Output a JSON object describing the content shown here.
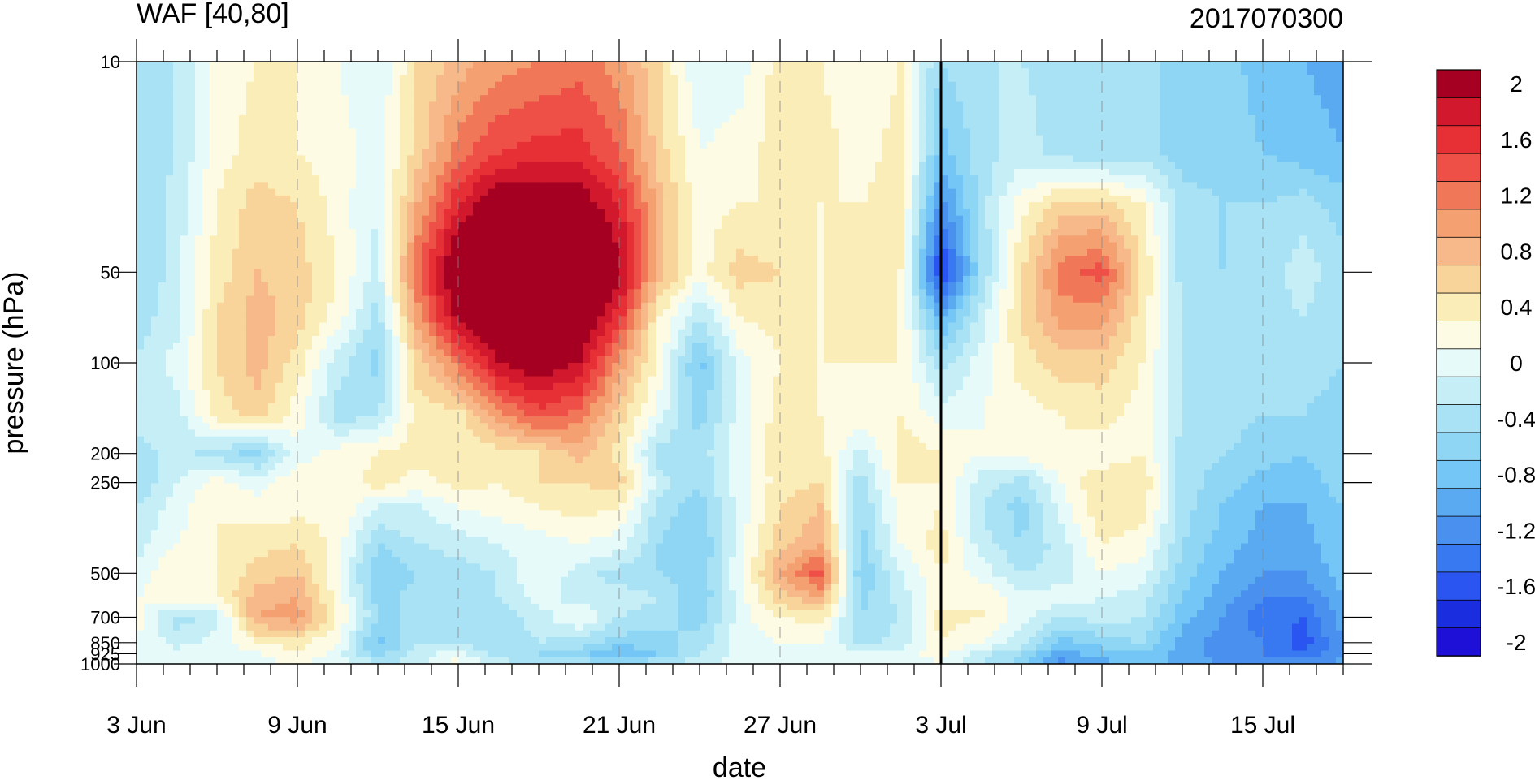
{
  "chart_data": {
    "type": "heatmap",
    "title": "WAF [40,80]",
    "subtitle": "2017070300",
    "xlabel": "date",
    "ylabel": "pressure (hPa)",
    "x_tick_labels": [
      "3 Jun",
      "9 Jun",
      "15 Jun",
      "21 Jun",
      "27 Jun",
      "3 Jul",
      "9 Jul",
      "15 Jul"
    ],
    "x_tick_days": [
      0,
      6,
      12,
      18,
      24,
      30,
      36,
      42
    ],
    "x_range_days": [
      0,
      45
    ],
    "y_scale": "log",
    "y_ticks": [
      10,
      50,
      100,
      200,
      250,
      500,
      700,
      850,
      925,
      1000
    ],
    "y_tick_labels": [
      "10",
      "50",
      "100",
      "200",
      "250",
      "500",
      "700",
      "850",
      "925",
      "1000"
    ],
    "y_range": [
      1000,
      10
    ],
    "reference_line_day": 30,
    "colorbar": {
      "levels": [
        -2.0,
        -1.8,
        -1.6,
        -1.4,
        -1.2,
        -1.0,
        -0.8,
        -0.6,
        -0.4,
        -0.2,
        0.0,
        0.2,
        0.4,
        0.6,
        0.8,
        1.0,
        1.2,
        1.4,
        1.6,
        1.8,
        2.0
      ],
      "labels": [
        "2",
        "1.6",
        "1.2",
        "0.8",
        "0.4",
        "0",
        "-0.4",
        "-0.8",
        "-1.2",
        "-1.6",
        "-2"
      ],
      "colors": [
        "#1f10d8",
        "#1a2ee0",
        "#2b55f0",
        "#3878f0",
        "#4a90ee",
        "#5aaaf2",
        "#73c6f5",
        "#8fd6f5",
        "#a8e2f4",
        "#c5eef7",
        "#e6fafa",
        "#fdfbe4",
        "#fbedb8",
        "#f8d39a",
        "#f7b98a",
        "#f4a070",
        "#f07858",
        "#ee5048",
        "#e63036",
        "#d1182c",
        "#a50021"
      ]
    },
    "grid_days": [
      0,
      1.5,
      3,
      4.5,
      6,
      7.5,
      9,
      10.5,
      12,
      13.5,
      15,
      16.5,
      18,
      19.5,
      21,
      22.5,
      24,
      25.5,
      27,
      28.5,
      30,
      31.5,
      33,
      34.5,
      36,
      37.5,
      39,
      40.5,
      42,
      43.5,
      45
    ],
    "grid_pressure": [
      10,
      20,
      30,
      50,
      70,
      100,
      150,
      200,
      250,
      300,
      400,
      500,
      600,
      700,
      850,
      925,
      1000
    ],
    "values": [
      [
        -0.4,
        -0.3,
        0.2,
        0.3,
        0.3,
        0.1,
        -0.1,
        0.5,
        0.8,
        1.0,
        1.1,
        1.2,
        1.0,
        0.5,
        -0.1,
        0.0,
        0.4,
        0.3,
        0.1,
        0.3,
        -0.5,
        -0.3,
        -0.3,
        -0.4,
        -0.5,
        -0.4,
        -0.6,
        -0.6,
        -0.8,
        -0.9,
        -1.0
      ],
      [
        -0.5,
        -0.3,
        0.2,
        0.4,
        0.3,
        0.2,
        0.0,
        0.6,
        1.2,
        1.5,
        1.6,
        1.6,
        1.3,
        0.6,
        0.1,
        0.2,
        0.4,
        0.4,
        0.2,
        0.4,
        -0.8,
        -0.4,
        -0.2,
        -0.4,
        -0.5,
        -0.4,
        -0.6,
        -0.6,
        -0.7,
        -0.8,
        -0.9
      ],
      [
        -0.5,
        -0.2,
        0.3,
        0.6,
        0.5,
        0.2,
        -0.1,
        0.9,
        1.7,
        2.2,
        2.2,
        2.1,
        1.7,
        0.8,
        0.2,
        0.3,
        0.3,
        0.3,
        0.3,
        0.4,
        -1.2,
        -0.4,
        0.2,
        0.6,
        0.6,
        0.3,
        -0.4,
        -0.5,
        -0.5,
        -0.4,
        -0.6
      ],
      [
        -0.5,
        -0.2,
        0.4,
        0.7,
        0.6,
        0.3,
        -0.2,
        1.3,
        2.3,
        2.5,
        2.5,
        2.4,
        2.0,
        0.8,
        0.2,
        0.6,
        0.5,
        0.3,
        0.4,
        0.3,
        -1.8,
        -0.5,
        0.5,
        1.2,
        1.4,
        0.5,
        -0.4,
        -0.5,
        -0.4,
        -0.2,
        -0.4
      ],
      [
        -0.4,
        -0.2,
        0.5,
        0.8,
        0.6,
        0.2,
        -0.4,
        1.0,
        2.0,
        2.4,
        2.5,
        2.3,
        1.6,
        0.3,
        -0.3,
        0.3,
        0.4,
        0.3,
        0.4,
        0.3,
        -1.0,
        -0.2,
        0.5,
        1.0,
        1.0,
        0.4,
        -0.3,
        -0.4,
        -0.4,
        -0.3,
        -0.5
      ],
      [
        -0.3,
        0.0,
        0.5,
        0.8,
        0.4,
        -0.2,
        -0.6,
        0.6,
        1.2,
        1.9,
        2.1,
        1.9,
        1.0,
        0.2,
        -0.8,
        0.0,
        0.3,
        0.3,
        0.3,
        0.3,
        -0.4,
        0.0,
        0.4,
        0.6,
        0.6,
        0.3,
        -0.3,
        -0.4,
        -0.5,
        -0.4,
        -0.5
      ],
      [
        -0.2,
        -0.2,
        0.4,
        0.6,
        0.2,
        -0.4,
        -0.3,
        0.4,
        0.4,
        1.0,
        1.4,
        1.2,
        0.6,
        0.0,
        -0.6,
        0.0,
        0.4,
        0.3,
        0.3,
        0.3,
        0.0,
        0.1,
        0.2,
        0.3,
        0.4,
        0.2,
        -0.3,
        -0.4,
        -0.5,
        -0.5,
        -0.6
      ],
      [
        -0.4,
        -0.2,
        -0.4,
        -0.6,
        0.0,
        0.2,
        0.3,
        0.4,
        0.4,
        0.4,
        0.5,
        0.8,
        0.4,
        -0.4,
        -0.4,
        0.0,
        0.5,
        0.4,
        -0.2,
        0.4,
        0.3,
        0.1,
        0.2,
        0.3,
        0.1,
        0.3,
        -0.4,
        -0.5,
        -0.6,
        -0.7,
        -0.6
      ],
      [
        -0.5,
        -0.1,
        0.2,
        0.0,
        0.3,
        0.1,
        0.4,
        0.2,
        0.4,
        0.3,
        0.5,
        0.5,
        0.6,
        -0.2,
        -0.5,
        0.0,
        0.4,
        0.5,
        -0.4,
        0.3,
        0.3,
        -0.2,
        -0.4,
        0.1,
        0.5,
        0.5,
        -0.4,
        -0.6,
        -0.8,
        -0.8,
        -0.6
      ],
      [
        -0.3,
        0.0,
        0.3,
        0.2,
        0.2,
        0.3,
        -0.1,
        -0.1,
        0.1,
        0.2,
        0.3,
        0.4,
        0.3,
        -0.4,
        -0.6,
        0.0,
        0.5,
        0.7,
        -0.5,
        0.2,
        0.3,
        -0.3,
        -0.6,
        0.0,
        0.5,
        0.4,
        -0.4,
        -0.7,
        -0.9,
        -0.9,
        -0.7
      ],
      [
        -0.2,
        0.1,
        0.3,
        0.4,
        0.5,
        0.2,
        -0.5,
        -0.3,
        -0.2,
        -0.1,
        0.0,
        0.1,
        0.0,
        -0.5,
        -0.7,
        0.0,
        0.6,
        0.9,
        -0.6,
        0.1,
        0.4,
        -0.2,
        -0.5,
        -0.2,
        0.3,
        0.2,
        -0.5,
        -0.8,
        -1.0,
        -1.0,
        -0.7
      ],
      [
        0.0,
        0.3,
        0.3,
        0.6,
        0.7,
        0.1,
        -0.7,
        -0.5,
        -0.4,
        -0.3,
        0.1,
        -0.2,
        -0.4,
        -0.5,
        -0.7,
        0.1,
        0.9,
        1.4,
        -0.7,
        -0.1,
        0.3,
        0.0,
        -0.3,
        -0.2,
        0.1,
        0.0,
        -0.6,
        -0.9,
        -1.1,
        -1.1,
        -0.8
      ],
      [
        0.1,
        0.2,
        0.3,
        0.8,
        0.9,
        0.2,
        -0.6,
        -0.4,
        -0.3,
        -0.3,
        0.0,
        -0.2,
        -0.2,
        -0.3,
        -0.7,
        0.0,
        0.6,
        0.9,
        -0.6,
        -0.2,
        0.2,
        0.3,
        0.0,
        0.0,
        -0.1,
        -0.2,
        -0.7,
        -1.0,
        -1.3,
        -1.3,
        -0.9
      ],
      [
        0.2,
        -0.4,
        -0.2,
        0.9,
        1.0,
        0.3,
        -0.5,
        -0.5,
        -0.5,
        -0.4,
        -0.2,
        0.1,
        -0.3,
        -0.4,
        -0.6,
        0.0,
        0.3,
        0.4,
        -0.5,
        -0.3,
        0.4,
        0.3,
        0.0,
        -0.3,
        -0.2,
        -0.3,
        -0.8,
        -1.1,
        -1.4,
        -1.5,
        -1.0
      ],
      [
        0.1,
        -0.2,
        0.0,
        0.3,
        0.4,
        0.1,
        -0.8,
        -0.3,
        -0.4,
        -0.5,
        -0.3,
        -0.4,
        -0.6,
        -0.6,
        -0.4,
        0.0,
        0.1,
        0.1,
        -0.4,
        -0.2,
        0.3,
        0.1,
        -0.2,
        -0.8,
        -0.6,
        -0.5,
        -1.0,
        -1.2,
        -1.3,
        -1.6,
        -1.1
      ],
      [
        0.0,
        0.0,
        0.0,
        0.1,
        0.3,
        0.0,
        -0.6,
        -0.2,
        0.0,
        -0.4,
        -0.5,
        -0.6,
        -0.9,
        -0.7,
        -0.3,
        0.0,
        0.0,
        0.1,
        0.1,
        0.0,
        0.2,
        -0.2,
        -0.5,
        -1.0,
        -0.8,
        -0.7,
        -1.0,
        -1.2,
        -1.3,
        -1.5,
        -1.1
      ],
      [
        0.0,
        0.0,
        0.0,
        0.0,
        0.1,
        0.0,
        -0.3,
        -0.2,
        0.2,
        -0.2,
        -0.3,
        -0.4,
        -0.5,
        -0.3,
        -0.2,
        0.0,
        0.0,
        0.0,
        0.0,
        0.0,
        0.1,
        -0.3,
        -0.6,
        -1.2,
        -1.0,
        -0.8,
        -1.0,
        -1.1,
        -1.2,
        -1.2,
        -1.0
      ]
    ]
  }
}
